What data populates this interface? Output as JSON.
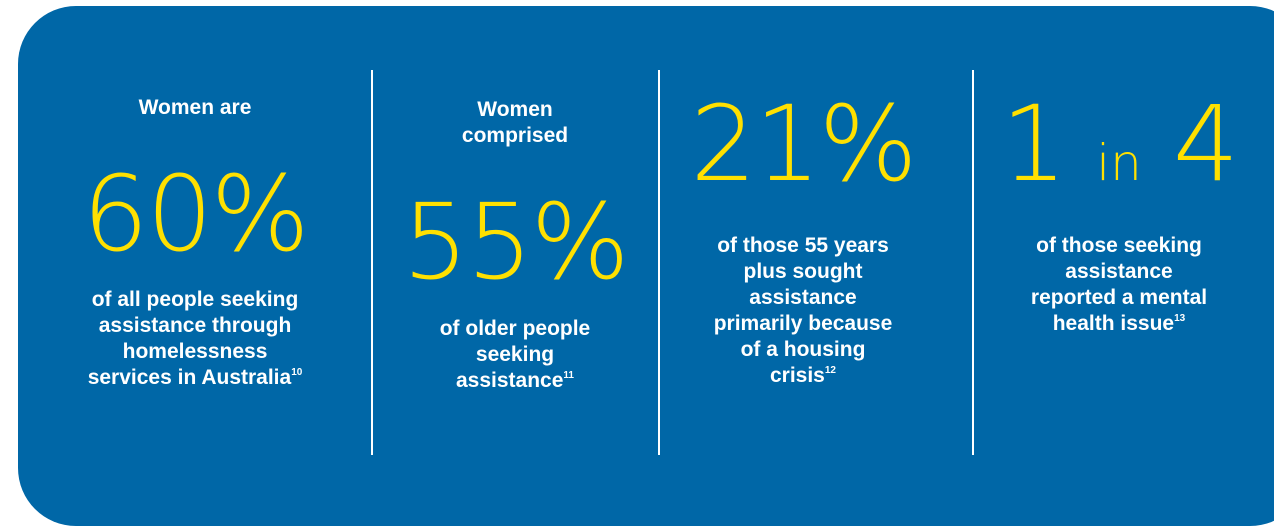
{
  "stats": [
    {
      "intro": "Women are",
      "value": "60%",
      "desc_lines": [
        "of all people seeking",
        "assistance through",
        "homelessness",
        "services in Australia"
      ],
      "footnote": "10"
    },
    {
      "intro_lines": [
        "Women",
        "comprised"
      ],
      "value": "55%",
      "desc_lines": [
        "of older people",
        "seeking",
        "assistance"
      ],
      "footnote": "11"
    },
    {
      "value": "21%",
      "desc_lines": [
        "of those 55 years",
        "plus sought",
        "assistance",
        "primarily because",
        "of a housing",
        "crisis"
      ],
      "footnote": "12"
    },
    {
      "value_parts": [
        "1",
        "in",
        "4"
      ],
      "desc_lines": [
        "of those seeking",
        "assistance",
        "reported a mental",
        "health issue"
      ],
      "footnote": "13"
    }
  ],
  "colors": {
    "panel": "#0067a7",
    "stat_number": "#ffe000",
    "text": "#ffffff"
  }
}
